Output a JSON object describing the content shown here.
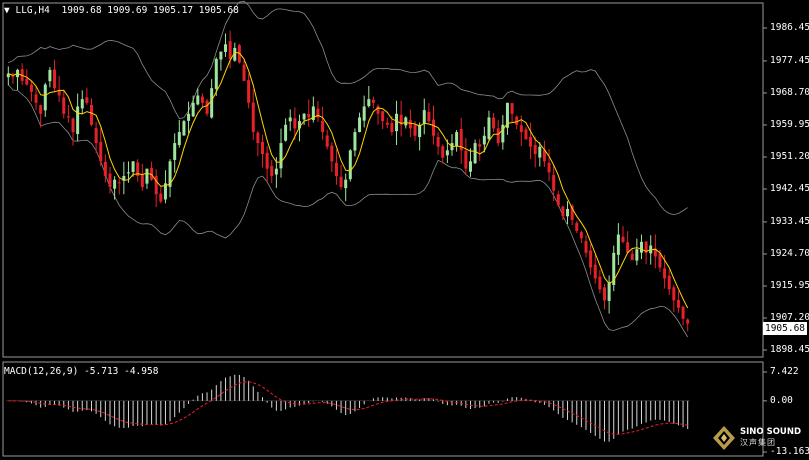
{
  "main_header": {
    "arrow": "▼",
    "symbol": "LLG,H4",
    "ohlc": "1909.68 1909.69 1905.17 1905.68"
  },
  "price_axis": [
    "1986.45",
    "1977.45",
    "1968.70",
    "1959.95",
    "1951.20",
    "1942.45",
    "1933.45",
    "1924.70",
    "1915.95",
    "1907.20",
    "1898.45"
  ],
  "current_price": "1905.68",
  "macd_header": "MACD(12,26,9) -5.713 -4.958",
  "macd_axis": [
    "7.422",
    "0.00",
    "-13.163"
  ],
  "logo": {
    "name": "SINO SOUND",
    "sub": "汉声集团"
  },
  "colors": {
    "bull": "#9fe59f",
    "bear": "#e8202a",
    "ma": "#ffd400",
    "band": "#8c8c8c",
    "signal": "#e8202a",
    "hist": "#d8d8d8"
  },
  "chart_data": {
    "type": "candlestick",
    "timeframe": "H4",
    "ylim": [
      1898.45,
      1990
    ],
    "macd_ylim": [
      -13.163,
      7.422
    ],
    "candles": [],
    "note_candles": "generated in script from closes series",
    "closes": [
      1974,
      1973,
      1975,
      1972,
      1971,
      1969,
      1966,
      1963,
      1971,
      1975,
      1970,
      1968,
      1963,
      1962,
      1958,
      1965,
      1967,
      1966,
      1960,
      1955,
      1950,
      1946,
      1943,
      1945,
      1944,
      1946,
      1947,
      1950,
      1946,
      1943,
      1948,
      1945,
      1941,
      1939,
      1944,
      1950,
      1955,
      1958,
      1961,
      1963,
      1966,
      1968,
      1966,
      1963,
      1970,
      1978,
      1980,
      1982,
      1978,
      1981,
      1977,
      1972,
      1966,
      1958,
      1955,
      1952,
      1948,
      1946,
      1948,
      1955,
      1960,
      1962,
      1959,
      1961,
      1963,
      1962,
      1965,
      1962,
      1958,
      1954,
      1950,
      1946,
      1943,
      1945,
      1953,
      1958,
      1962,
      1965,
      1967,
      1966,
      1963,
      1961,
      1960,
      1958,
      1963,
      1960,
      1962,
      1959,
      1957,
      1960,
      1964,
      1961,
      1957,
      1954,
      1951,
      1953,
      1955,
      1958,
      1953,
      1948,
      1950,
      1955,
      1954,
      1957,
      1962,
      1959,
      1955,
      1960,
      1966,
      1963,
      1960,
      1958,
      1956,
      1954,
      1952,
      1954,
      1950,
      1947,
      1942,
      1938,
      1935,
      1937,
      1934,
      1931,
      1929,
      1925,
      1921,
      1918,
      1915,
      1912,
      1917,
      1925,
      1930,
      1928,
      1925,
      1923,
      1926,
      1928,
      1925,
      1927,
      1924,
      1921,
      1918,
      1915,
      1912,
      1910,
      1907,
      1905.68
    ],
    "macd_hist": [],
    "macd_signal": []
  }
}
